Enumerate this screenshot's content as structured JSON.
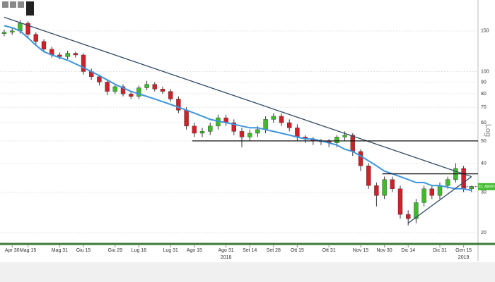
{
  "chart_data": {
    "type": "candlestick",
    "log_scale": true,
    "grid": true,
    "axis_label": "Log",
    "ylim": [
      18,
      180
    ],
    "yticks": [
      20,
      30,
      40,
      50,
      60,
      70,
      80,
      90,
      100,
      150
    ],
    "categories": [
      null,
      "Apr 30",
      null,
      "Mag 15",
      null,
      null,
      null,
      "Mag 31",
      null,
      null,
      "Giu 15",
      null,
      null,
      null,
      "Giu 29",
      null,
      null,
      "Lug 16",
      null,
      null,
      null,
      "Lug 31",
      null,
      null,
      "Ago 15",
      null,
      null,
      null,
      "Ago 31",
      null,
      null,
      "Set 14",
      null,
      null,
      "Set 28",
      null,
      null,
      "Ott 15",
      null,
      null,
      null,
      "Ott 31",
      null,
      null,
      null,
      "Nov 15",
      null,
      null,
      "Nov 30",
      null,
      null,
      "Dic 14",
      null,
      null,
      null,
      "Dic 31",
      null,
      null,
      "Gen 15",
      null
    ],
    "years": [
      {
        "label": "2018",
        "at": "Ago 31"
      },
      {
        "label": "2019",
        "at": "Gen 15"
      }
    ],
    "up_color": "#3dbb2a",
    "down_color": "#d0202a",
    "open": [
      146,
      148,
      150,
      162,
      145,
      135,
      125,
      118,
      116,
      120,
      118,
      100,
      95,
      90,
      82,
      86,
      80,
      78,
      85,
      88,
      84,
      82,
      76,
      68,
      58,
      54,
      55,
      58,
      63,
      60,
      55,
      52,
      54,
      56,
      62,
      64,
      60,
      57,
      52,
      51,
      50,
      50,
      49,
      52,
      53,
      45,
      39,
      32,
      29,
      34,
      31,
      24,
      23,
      27,
      31,
      29,
      32,
      34,
      38,
      31
    ],
    "high": [
      152,
      154,
      167,
      165,
      148,
      138,
      128,
      121,
      123,
      122,
      120,
      103,
      97,
      92,
      88,
      88,
      82,
      87,
      91,
      90,
      86,
      84,
      78,
      70,
      60,
      57,
      60,
      65,
      65,
      62,
      57,
      56,
      58,
      64,
      66,
      66,
      62,
      59,
      53,
      52,
      51,
      51,
      53,
      55,
      54,
      46,
      40,
      33,
      35,
      35,
      32,
      25,
      28,
      32,
      32,
      33,
      35,
      40,
      39,
      32
    ],
    "low": [
      142,
      144,
      146,
      141,
      131,
      121,
      115,
      113,
      113,
      115,
      97,
      92,
      87,
      79,
      80,
      78,
      76,
      76,
      83,
      82,
      80,
      74,
      66,
      56,
      52,
      52,
      53,
      56,
      58,
      53,
      47,
      50,
      52,
      54,
      60,
      58,
      55,
      50,
      49,
      48,
      48,
      47,
      47,
      50,
      43,
      37,
      31,
      26,
      28,
      30,
      23,
      21.5,
      22,
      26,
      28,
      28,
      31,
      33,
      30,
      30
    ],
    "close": [
      148,
      150,
      162,
      145,
      135,
      125,
      118,
      116,
      120,
      118,
      100,
      95,
      90,
      82,
      86,
      80,
      78,
      85,
      88,
      84,
      82,
      76,
      68,
      58,
      54,
      55,
      58,
      63,
      60,
      55,
      52,
      54,
      56,
      62,
      64,
      60,
      57,
      52,
      51,
      50,
      50,
      49,
      52,
      53,
      45,
      39,
      32,
      29,
      34,
      31,
      24,
      23,
      27,
      31,
      29,
      32,
      34,
      38,
      31,
      31.68
    ],
    "moving_average": {
      "color": "#3d95e0",
      "values": [
        158,
        155,
        150,
        140,
        130,
        122,
        118,
        115,
        112,
        108,
        104,
        100,
        96,
        92,
        88,
        85,
        82,
        80,
        78,
        76,
        74,
        72,
        70,
        68,
        66,
        64,
        62,
        61,
        60,
        59,
        58,
        57,
        57,
        56,
        55,
        54,
        53,
        52,
        51,
        51,
        50,
        49,
        48,
        46,
        45,
        43,
        41,
        39,
        37,
        36,
        35,
        34,
        33,
        33,
        32,
        32,
        31.5,
        31,
        31,
        30.5
      ]
    },
    "trendlines": [
      {
        "color": "#2e4a66",
        "from": [
          0,
          172
        ],
        "to": [
          59,
          35
        ]
      },
      {
        "color": "#2e4a66",
        "from": [
          51,
          22
        ],
        "to": [
          59,
          35
        ]
      }
    ],
    "levels": [
      {
        "color": "#111",
        "value": 50,
        "from": 24
      },
      {
        "color": "#111",
        "value": 36,
        "from": 48
      }
    ],
    "last_price": {
      "value": 31.68,
      "label": "31,6800",
      "color": "#3dbb2a"
    }
  }
}
